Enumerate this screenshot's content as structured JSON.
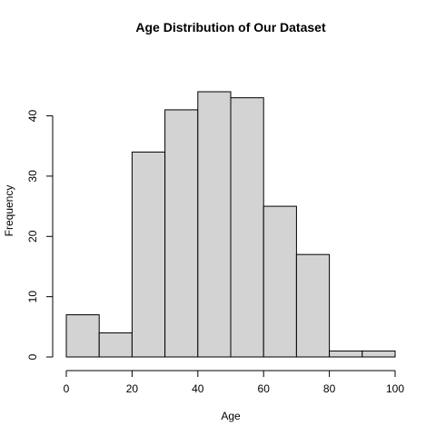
{
  "chart_data": {
    "type": "bar",
    "title": "Age Distribution of Our Dataset",
    "xlabel": "Age",
    "ylabel": "Frequency",
    "bins": [
      {
        "from": 0,
        "to": 10,
        "count": 7
      },
      {
        "from": 10,
        "to": 20,
        "count": 4
      },
      {
        "from": 20,
        "to": 30,
        "count": 34
      },
      {
        "from": 30,
        "to": 40,
        "count": 41
      },
      {
        "from": 40,
        "to": 50,
        "count": 44
      },
      {
        "from": 50,
        "to": 60,
        "count": 43
      },
      {
        "from": 60,
        "to": 70,
        "count": 25
      },
      {
        "from": 70,
        "to": 80,
        "count": 17
      },
      {
        "from": 80,
        "to": 90,
        "count": 1
      },
      {
        "from": 90,
        "to": 100,
        "count": 1
      }
    ],
    "xlim": [
      0,
      100
    ],
    "ylim": [
      0,
      44
    ],
    "x_ticks": [
      "0",
      "20",
      "40",
      "60",
      "80",
      "100"
    ],
    "y_ticks": [
      "0",
      "10",
      "20",
      "30",
      "40"
    ],
    "bar_fill": "#d3d3d3",
    "bar_stroke": "#000000",
    "grid": false
  }
}
